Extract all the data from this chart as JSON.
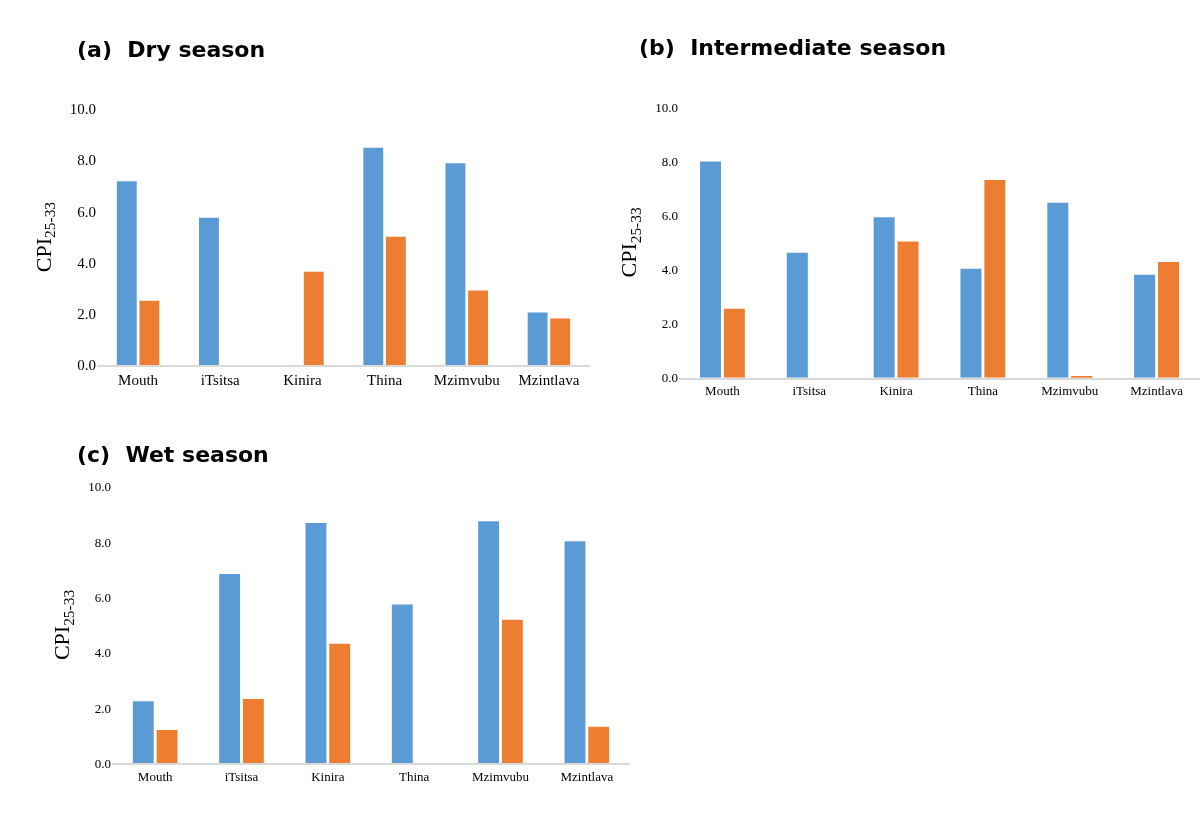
{
  "chart_data": [
    {
      "type": "bar",
      "title": "(a)  Dry season",
      "ylabel": "CPI$_{25-33}$",
      "categories": [
        "Mouth",
        "iTsitsa",
        "Kinira",
        "Thina",
        "Mzimvubu",
        "Mzintlava"
      ],
      "series": [
        {
          "color": "#5b9bd5",
          "values": [
            7.18,
            5.75,
            0,
            8.49,
            7.88,
            2.05
          ]
        },
        {
          "color": "#ed7d31",
          "values": [
            2.51,
            0,
            3.64,
            5.01,
            2.91,
            1.82
          ]
        }
      ],
      "ylim": [
        0,
        10
      ],
      "yticks": [
        {
          "value": 0,
          "label": "0.0"
        },
        {
          "value": 2,
          "label": "2.0"
        },
        {
          "value": 4,
          "label": "4.0"
        },
        {
          "value": 6,
          "label": "6.0"
        },
        {
          "value": 8,
          "label": "8.0"
        },
        {
          "value": 10,
          "label": "10.0"
        }
      ]
    },
    {
      "type": "bar",
      "title": "(b)  Intermediate season",
      "ylabel": "CPI$_{25-33}$",
      "categories": [
        "Mouth",
        "iTsitsa",
        "Kinira",
        "Thina",
        "Mzimvubu",
        "Mzintlava"
      ],
      "series": [
        {
          "color": "#5b9bd5",
          "values": [
            7.99,
            4.62,
            5.93,
            4.03,
            6.47,
            3.81
          ]
        },
        {
          "color": "#ed7d31",
          "values": [
            2.55,
            0,
            5.03,
            7.31,
            0.07,
            4.28
          ]
        }
      ],
      "ylim": [
        0,
        10
      ],
      "yticks": [
        {
          "value": 0,
          "label": "0.0"
        },
        {
          "value": 2,
          "label": "2.0"
        },
        {
          "value": 4,
          "label": "4.0"
        },
        {
          "value": 6,
          "label": "6.0"
        },
        {
          "value": 8,
          "label": "8.0"
        },
        {
          "value": 10,
          "label": "10.0"
        }
      ]
    },
    {
      "type": "bar",
      "title": "(c)  Wet season",
      "ylabel": "CPI$_{25-33}$",
      "categories": [
        "Mouth",
        "iTsitsa",
        "Kinira",
        "Thina",
        "Mzimvubu",
        "Mzintlava"
      ],
      "series": [
        {
          "color": "#5b9bd5",
          "values": [
            2.24,
            6.84,
            8.69,
            5.74,
            8.75,
            8.03
          ]
        },
        {
          "color": "#ed7d31",
          "values": [
            1.2,
            2.32,
            4.32,
            0,
            5.19,
            1.32
          ]
        }
      ],
      "ylim": [
        0,
        10
      ],
      "yticks": [
        {
          "value": 0,
          "label": "0.0"
        },
        {
          "value": 2,
          "label": "2.0"
        },
        {
          "value": 4,
          "label": "4.0"
        },
        {
          "value": 6,
          "label": "6.0"
        },
        {
          "value": 8,
          "label": "8.0"
        },
        {
          "value": 10,
          "label": "10.0"
        }
      ]
    }
  ]
}
